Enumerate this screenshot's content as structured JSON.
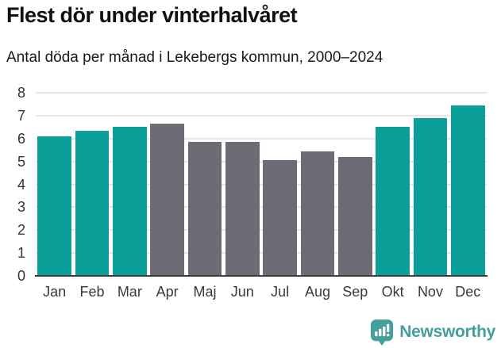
{
  "header": {
    "title": "Flest dör under vinterhalvåret",
    "subtitle": "Antal döda per månad i Lekebergs kommun, 2000–2024"
  },
  "chart_data": {
    "type": "bar",
    "title": "Flest dör under vinterhalvåret",
    "subtitle": "Antal döda per månad i Lekebergs kommun, 2000–2024",
    "categories": [
      "Jan",
      "Feb",
      "Mar",
      "Apr",
      "Maj",
      "Jun",
      "Jul",
      "Aug",
      "Sep",
      "Okt",
      "Nov",
      "Dec"
    ],
    "values": [
      6.1,
      6.35,
      6.5,
      6.65,
      5.85,
      5.85,
      5.05,
      5.45,
      5.2,
      6.5,
      6.9,
      7.45
    ],
    "highlighted": [
      true,
      true,
      true,
      false,
      false,
      false,
      false,
      false,
      false,
      true,
      true,
      true
    ],
    "xlabel": "",
    "ylabel": "",
    "ylim": [
      0,
      8
    ],
    "yticks": [
      0,
      1,
      2,
      3,
      4,
      5,
      6,
      7,
      8
    ],
    "grid": true,
    "legend": "none",
    "colors": {
      "highlight": "#0aa099",
      "default": "#6f6b74",
      "gridline": "#e8e7e8",
      "axis": "#3b3b3b"
    }
  },
  "footer": {
    "logo_text": "Newsworthy",
    "logo_color": "#43a09a"
  }
}
